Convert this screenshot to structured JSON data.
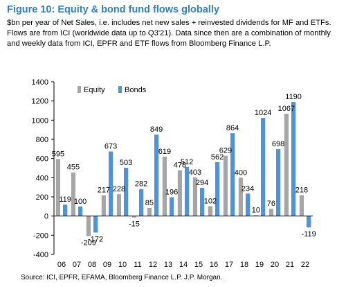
{
  "figure": {
    "title": "Figure 10: Equity & bond fund flows globally",
    "subtitle": "$bn per year of Net Sales, i.e. includes net new sales + reinvested dividends for MF and ETFs. Flows are from ICI (worldwide data up to Q3'21). Data since then are a combination of monthly and weekly data from ICI, EPFR and ETF flows from Bloomberg Finance L.P.",
    "source": "Source: ICI, EPFR, EFAMA, Bloomberg Finance L.P. J.P. Morgan."
  },
  "colors": {
    "equity": "#a6a6a6",
    "bonds": "#4f93d8",
    "title": "#2f7fc1"
  },
  "chart_data": {
    "type": "bar",
    "categories": [
      "06",
      "07",
      "08",
      "09",
      "10",
      "11",
      "12",
      "13",
      "14",
      "15",
      "16",
      "17",
      "18",
      "19",
      "20",
      "21",
      "22"
    ],
    "series": [
      {
        "name": "Equity",
        "values": [
          595,
          455,
          -209,
          217,
          228,
          -15,
          85,
          619,
          478,
          403,
          102,
          629,
          400,
          10,
          76,
          1067,
          218
        ],
        "labels": [
          "595",
          "455",
          "-209",
          "217",
          "228",
          "-15",
          "85",
          "619",
          "478",
          "403",
          "102",
          "629",
          "400",
          "10",
          "76",
          "1067",
          "218"
        ]
      },
      {
        "name": "Bonds",
        "values": [
          119,
          100,
          -172,
          673,
          503,
          282,
          849,
          196,
          512,
          294,
          562,
          864,
          234,
          1024,
          698,
          1190,
          -119
        ],
        "labels": [
          "119",
          "100",
          "-172",
          "673",
          "503",
          "282",
          "849",
          "196",
          "512",
          "294",
          "562",
          "864",
          "234",
          "1024",
          "698",
          "1190",
          "-119"
        ]
      }
    ],
    "ylim": [
      -400,
      1400
    ],
    "yticks": [
      "-400",
      "-200",
      "0",
      "200",
      "400",
      "600",
      "800",
      "1000",
      "1200",
      "1400"
    ],
    "grid": false,
    "legend": "top-left"
  }
}
